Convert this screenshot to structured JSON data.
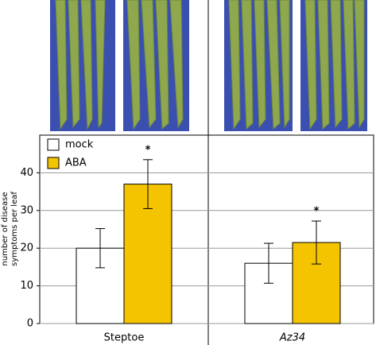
{
  "chart_data": {
    "type": "bar",
    "categories": [
      "Steptoe",
      "Az34"
    ],
    "category_italic": [
      false,
      true
    ],
    "series": [
      {
        "name": "mock",
        "color": "#ffffff",
        "values": [
          20,
          16
        ],
        "errors": [
          5.2,
          5.3
        ]
      },
      {
        "name": "ABA",
        "color": "#f5c400",
        "values": [
          37,
          21.5
        ],
        "errors": [
          6.5,
          5.7
        ]
      }
    ],
    "annotations": [
      {
        "text": "*",
        "x": "Steptoe",
        "series": "ABA"
      },
      {
        "text": "*",
        "x": "Az34",
        "series": "ABA"
      }
    ],
    "y_label": [
      "number of disease",
      "symptoms per leaf"
    ],
    "ylim": [
      0,
      50
    ],
    "yticks": [
      0,
      10,
      20,
      30,
      40
    ],
    "grid": true,
    "legend": "upper left"
  }
}
